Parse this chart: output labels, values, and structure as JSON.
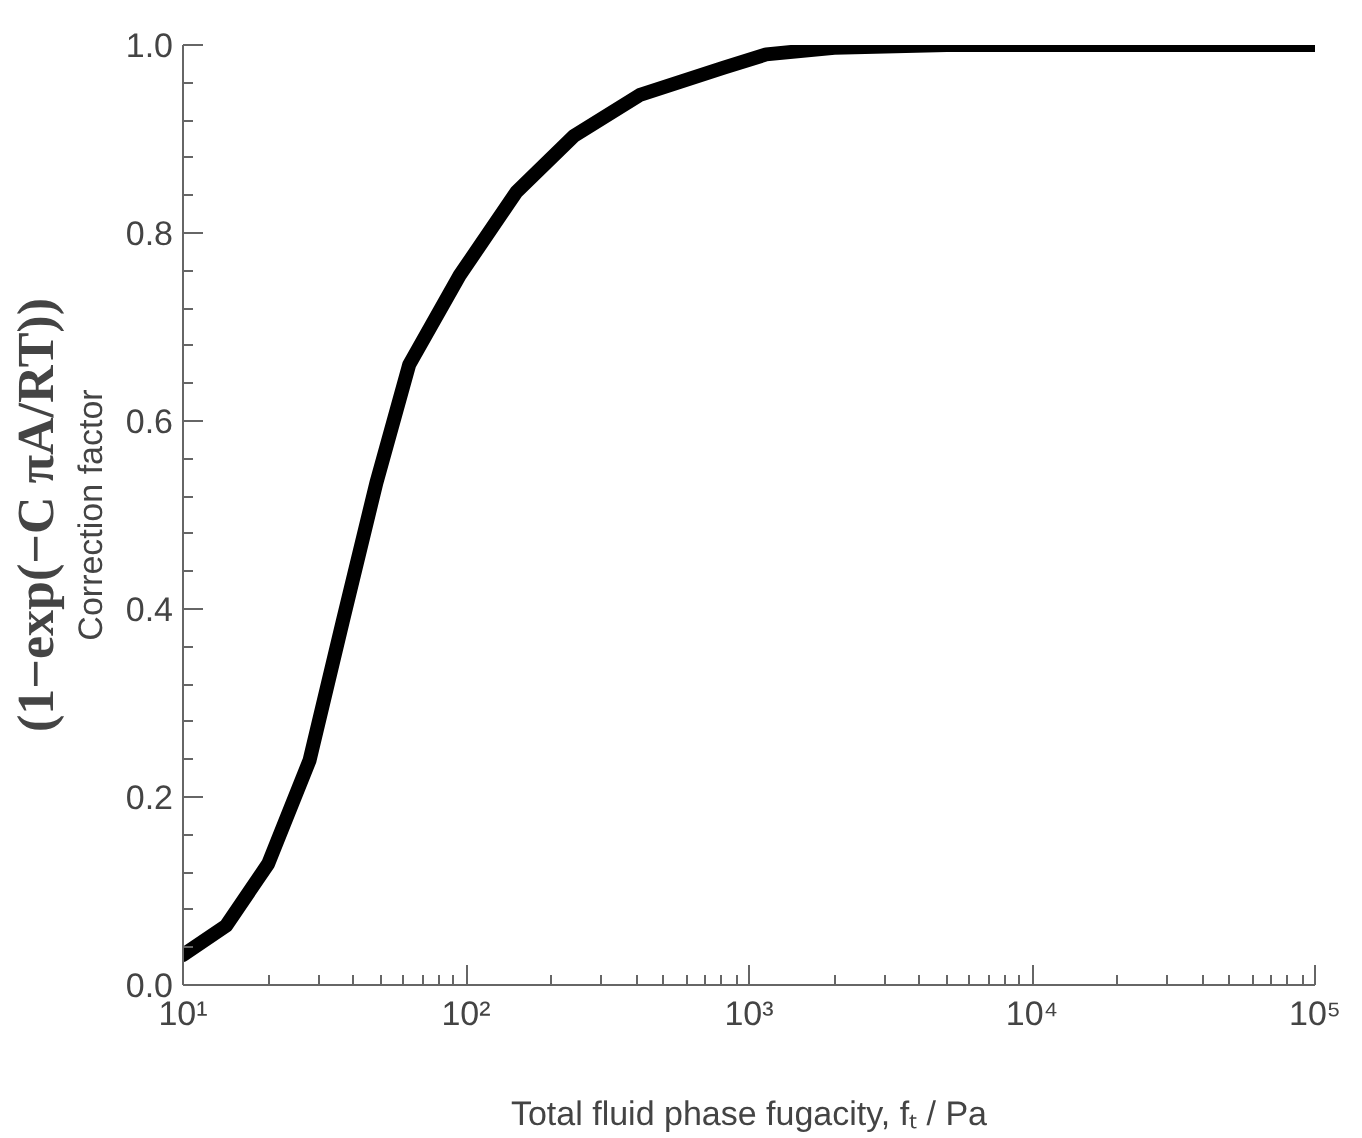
{
  "chart_data": {
    "type": "line",
    "xlabel": "Total fluid phase fugacity, fₜ / Pa",
    "ylabel": "Correction factor",
    "annotations": [
      "(1−exp(−C πA/RT))"
    ],
    "log": "x",
    "x": [
      10,
      14.2,
      20,
      28,
      36.7,
      48.2,
      63,
      95,
      151,
      240,
      412,
      815,
      1150,
      2000,
      5000,
      10000,
      100000
    ],
    "series": [
      {
        "color": "#000000",
        "values": [
          0.032,
          0.063,
          0.129,
          0.239,
          0.387,
          0.534,
          0.66,
          0.755,
          0.844,
          0.903,
          0.947,
          0.976,
          0.99,
          0.997,
          1.0,
          1.0,
          1.0
        ]
      }
    ],
    "xlim": [
      10,
      100000
    ],
    "xticks": [
      {
        "value": 10,
        "label": "10¹"
      },
      {
        "value": 100,
        "label": "10²"
      },
      {
        "value": 1000,
        "label": "10³"
      },
      {
        "value": 10000,
        "label": "10⁴"
      },
      {
        "value": 100000,
        "label": "10⁵"
      }
    ],
    "ylim": [
      0,
      1
    ],
    "yticks": [
      {
        "value": 0,
        "label": "0.0"
      },
      {
        "value": 0.2,
        "label": "0.2"
      },
      {
        "value": 0.4,
        "label": "0.4"
      },
      {
        "value": 0.6,
        "label": "0.6"
      },
      {
        "value": 0.8,
        "label": "0.8"
      },
      {
        "value": 1,
        "label": "1.0"
      }
    ],
    "grid": false,
    "marker": "none",
    "line_style": "solid"
  }
}
